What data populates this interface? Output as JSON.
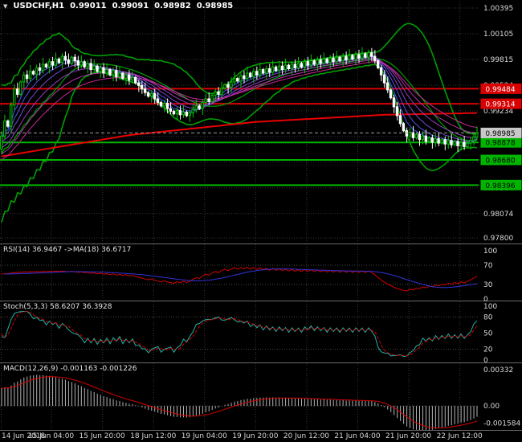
{
  "icons": {
    "marker": "▼"
  },
  "colors": {
    "background": "#000000",
    "grid": "#383838",
    "level_line": "#4A4A4A",
    "divider": "#6A6A6A",
    "axis_text": "#DCDCDC",
    "bull": "#00C800",
    "bear": "#FFFFFF",
    "bollinger": "#00A000",
    "ema_fan": [
      "#3C5AFA",
      "#5A50E6",
      "#7846D2",
      "#963CBE",
      "#B432AA",
      "#C82896"
    ],
    "red_ma": "#E80000",
    "hline_resistance": "#D80000",
    "hline_support": "#00B400",
    "label_text_on_red": "#FFFFFF",
    "label_text_on_green": "#000000",
    "bid_line": "#9C9C9C",
    "bid_box": "#C8C8C8",
    "rsi_line": "#D40000",
    "rsi_ma": "#3232DC",
    "stoch_k": "#20B2AA",
    "stoch_d": "#D40000",
    "macd_hist": "#B4B4B4",
    "macd_signal": "#D40000"
  },
  "chart_data": {
    "type": "candlestick",
    "symbol_title": "USDCHF,H1",
    "ohlc_display": {
      "open": "0.99011",
      "high": "0.99091",
      "low": "0.98982",
      "close": "0.98985"
    },
    "x_axis": {
      "labels": [
        "14 Jun 2018",
        "15 Jun 04:00",
        "15 Jun 20:00",
        "18 Jun 12:00",
        "19 Jun 04:00",
        "19 Jun 20:00",
        "20 Jun 12:00",
        "21 Jun 04:00",
        "21 Jun 20:00",
        "22 Jun 12:00"
      ],
      "bars_per_label": 16
    },
    "main": {
      "axis_min": 0.978,
      "axis_max": 1.00395,
      "y_tick_labels": [
        "1.00395",
        "1.00105",
        "0.99815",
        "0.99524",
        "0.99234",
        "0.98944",
        "0.98654",
        "0.98364",
        "0.98074",
        "0.97800"
      ],
      "bollinger": {
        "period": 20,
        "deviation": 2
      },
      "ema_periods": [
        5,
        8,
        12,
        17,
        23,
        30
      ],
      "red_ma_points": [
        [
          0,
          0.9872
        ],
        [
          40,
          0.9896
        ],
        [
          80,
          0.9911
        ],
        [
          120,
          0.9919
        ],
        [
          149,
          0.9921
        ]
      ],
      "hlines": [
        {
          "price": 0.99484,
          "label": "0.99484",
          "type": "resistance"
        },
        {
          "price": 0.99314,
          "label": "0.99314",
          "type": "resistance"
        },
        {
          "price": 0.98878,
          "label": "0.98878",
          "type": "support"
        },
        {
          "price": 0.9868,
          "label": "0.98680",
          "type": "support"
        },
        {
          "price": 0.98396,
          "label": "0.98396",
          "type": "support"
        }
      ],
      "bid": {
        "price": 0.98985,
        "label": "0.98985"
      },
      "pre_closes": [
        0.9835,
        0.977,
        0.984,
        0.9775,
        0.9845,
        0.978,
        0.985,
        0.9785,
        0.9855,
        0.979,
        0.9865,
        0.98,
        0.9875,
        0.981,
        0.9885,
        0.982,
        0.9895,
        0.983,
        0.9905,
        0.984,
        0.9915,
        0.985,
        0.9925,
        0.986,
        0.993,
        0.987,
        0.993,
        0.988,
        0.991,
        0.988
      ],
      "closes": [
        0.9895,
        0.9912,
        0.9906,
        0.993,
        0.9948,
        0.9942,
        0.9956,
        0.9964,
        0.996,
        0.9968,
        0.9965,
        0.9972,
        0.9969,
        0.9976,
        0.9973,
        0.9979,
        0.9975,
        0.9982,
        0.9978,
        0.9985,
        0.9981,
        0.9977,
        0.9984,
        0.998,
        0.9975,
        0.9979,
        0.9973,
        0.9977,
        0.997,
        0.9974,
        0.9968,
        0.9972,
        0.9966,
        0.997,
        0.9964,
        0.9969,
        0.9962,
        0.9966,
        0.996,
        0.9964,
        0.9958,
        0.9961,
        0.9955,
        0.9952,
        0.9948,
        0.9944,
        0.994,
        0.9943,
        0.9937,
        0.9933,
        0.9929,
        0.9932,
        0.9926,
        0.9923,
        0.992,
        0.9924,
        0.9919,
        0.9922,
        0.9918,
        0.9921,
        0.9925,
        0.9929,
        0.9926,
        0.9933,
        0.9937,
        0.9934,
        0.9941,
        0.9945,
        0.9942,
        0.9949,
        0.9953,
        0.995,
        0.9956,
        0.996,
        0.9957,
        0.9963,
        0.996,
        0.9966,
        0.9962,
        0.9968,
        0.9964,
        0.997,
        0.9966,
        0.9971,
        0.9967,
        0.9973,
        0.9969,
        0.9974,
        0.997,
        0.9975,
        0.9971,
        0.9976,
        0.9972,
        0.9977,
        0.9973,
        0.9979,
        0.9975,
        0.998,
        0.9976,
        0.9981,
        0.9977,
        0.9982,
        0.9978,
        0.9983,
        0.9979,
        0.9984,
        0.998,
        0.9985,
        0.9981,
        0.9986,
        0.9982,
        0.9987,
        0.9983,
        0.9988,
        0.9984,
        0.9989,
        0.9985,
        0.998,
        0.9972,
        0.9964,
        0.9955,
        0.9947,
        0.9938,
        0.9928,
        0.9918,
        0.9909,
        0.9901,
        0.9895,
        0.9899,
        0.9893,
        0.9897,
        0.9891,
        0.9895,
        0.9889,
        0.9893,
        0.9888,
        0.9892,
        0.9887,
        0.9891,
        0.9886,
        0.989,
        0.9885,
        0.9889,
        0.9884,
        0.9888,
        0.9883,
        0.9887,
        0.989,
        0.9894,
        0.98985
      ]
    },
    "rsi": {
      "label": "RSI(14) 36.9467 ->MA(18) 36.6717",
      "period": 14,
      "ma_period": 18,
      "ticks": [
        100,
        70,
        30,
        0
      ],
      "levels": [
        70,
        30
      ]
    },
    "stoch": {
      "label": "Stoch(5,3,3) 58.6207 36.3928",
      "k_period": 5,
      "slowing": 3,
      "d_period": 3,
      "ticks": [
        100,
        80,
        50,
        20,
        0
      ],
      "levels": [
        80,
        20
      ]
    },
    "macd": {
      "label": "MACD(12,26,9) -0.001163 -0.001226",
      "fast": 12,
      "slow": 26,
      "signal": 9,
      "tick_labels": [
        "0.00332",
        "0.00",
        "-0.001584"
      ],
      "tick_values": [
        0.00332,
        0,
        -0.001584
      ],
      "range": [
        -0.0019,
        0.00345
      ]
    }
  }
}
